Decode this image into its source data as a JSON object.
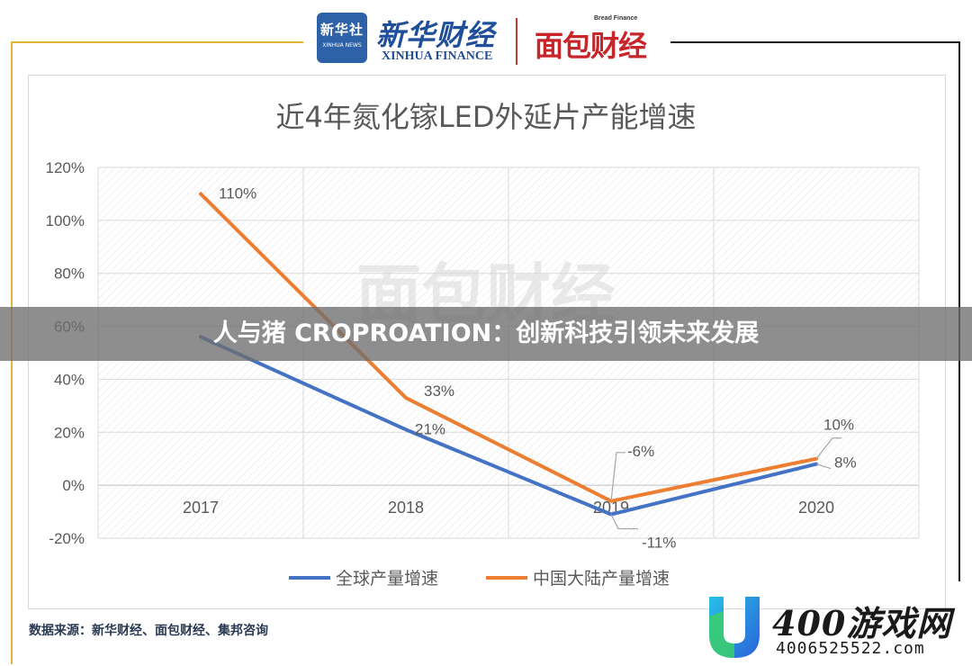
{
  "header": {
    "xinhua_badge_cn": "新华社",
    "xinhua_badge_en": "XINHUA NEWS",
    "brand_cn": "新华财经",
    "brand_en": "XINHUA FINANCE",
    "bread_small": "Bread Finance",
    "bread_logo": "面包财经"
  },
  "banner": {
    "text": "人与猪 CROPROATION：创新科技引领未来发展"
  },
  "source": {
    "text": "数据来源：新华财经、面包财经、集邦咨询"
  },
  "watermark": {
    "name": "400游戏网",
    "url": "4006525522.com",
    "faded_logo_text": "面包财经"
  },
  "colors": {
    "global": "#4472C4",
    "china": "#ED7D31",
    "accent_gold": "#e0b53a",
    "brand_blue": "#1f4e9a",
    "brand_red": "#c8252b"
  },
  "chart_data": {
    "type": "line",
    "title": "近4年氮化镓LED外延片产能增速",
    "xlabel": "",
    "ylabel": "",
    "categories": [
      "2017",
      "2018",
      "2019",
      "2020"
    ],
    "ylim": [
      -20,
      120
    ],
    "yticks": [
      -20,
      0,
      20,
      40,
      60,
      80,
      100,
      120
    ],
    "ytick_labels": [
      "-20%",
      "0%",
      "20%",
      "40%",
      "60%",
      "80%",
      "100%",
      "120%"
    ],
    "grid": true,
    "legend_position": "bottom",
    "series": [
      {
        "name": "全球产量增速",
        "values": [
          56,
          21,
          -11,
          8
        ],
        "labels": [
          "",
          "21%",
          "-11%",
          "8%"
        ],
        "color": "#4472C4"
      },
      {
        "name": "中国大陆产量增速",
        "values": [
          110,
          33,
          -6,
          10
        ],
        "labels": [
          "110%",
          "33%",
          "-6%",
          "10%"
        ],
        "color": "#ED7D31"
      }
    ]
  }
}
